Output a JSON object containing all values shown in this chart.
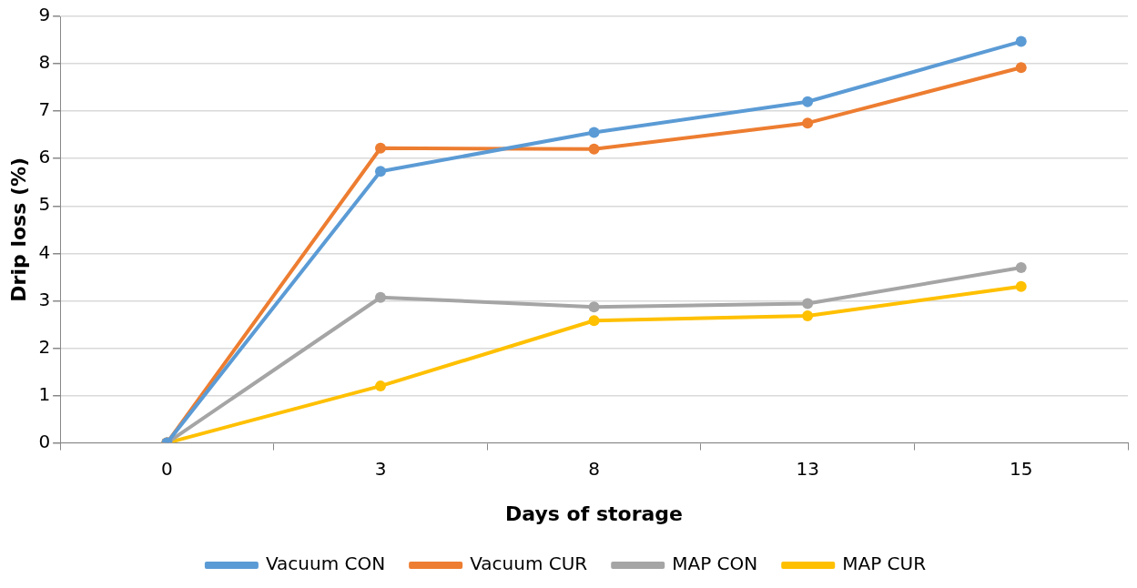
{
  "chart_data": {
    "type": "line",
    "xlabel": "Days of storage",
    "ylabel": "Drip loss (%)",
    "categories": [
      "0",
      "3",
      "8",
      "13",
      "15"
    ],
    "series": [
      {
        "name": "Vacuum CON",
        "color": "#5b9bd5",
        "values": [
          0,
          5.73,
          6.55,
          7.2,
          8.47
        ]
      },
      {
        "name": "Vacuum CUR",
        "color": "#ed7d31",
        "values": [
          0,
          6.22,
          6.2,
          6.75,
          7.92
        ]
      },
      {
        "name": "MAP CON",
        "color": "#a5a5a5",
        "values": [
          0,
          3.07,
          2.87,
          2.94,
          3.7
        ]
      },
      {
        "name": "MAP CUR",
        "color": "#ffc000",
        "values": [
          0,
          1.2,
          2.58,
          2.68,
          3.3
        ]
      }
    ],
    "ylim": [
      0,
      9
    ],
    "yticks": [
      0,
      1,
      2,
      3,
      4,
      5,
      6,
      7,
      8,
      9
    ],
    "grid": "y",
    "legend": "bottom",
    "marker": "circle",
    "line_style": "solid"
  }
}
